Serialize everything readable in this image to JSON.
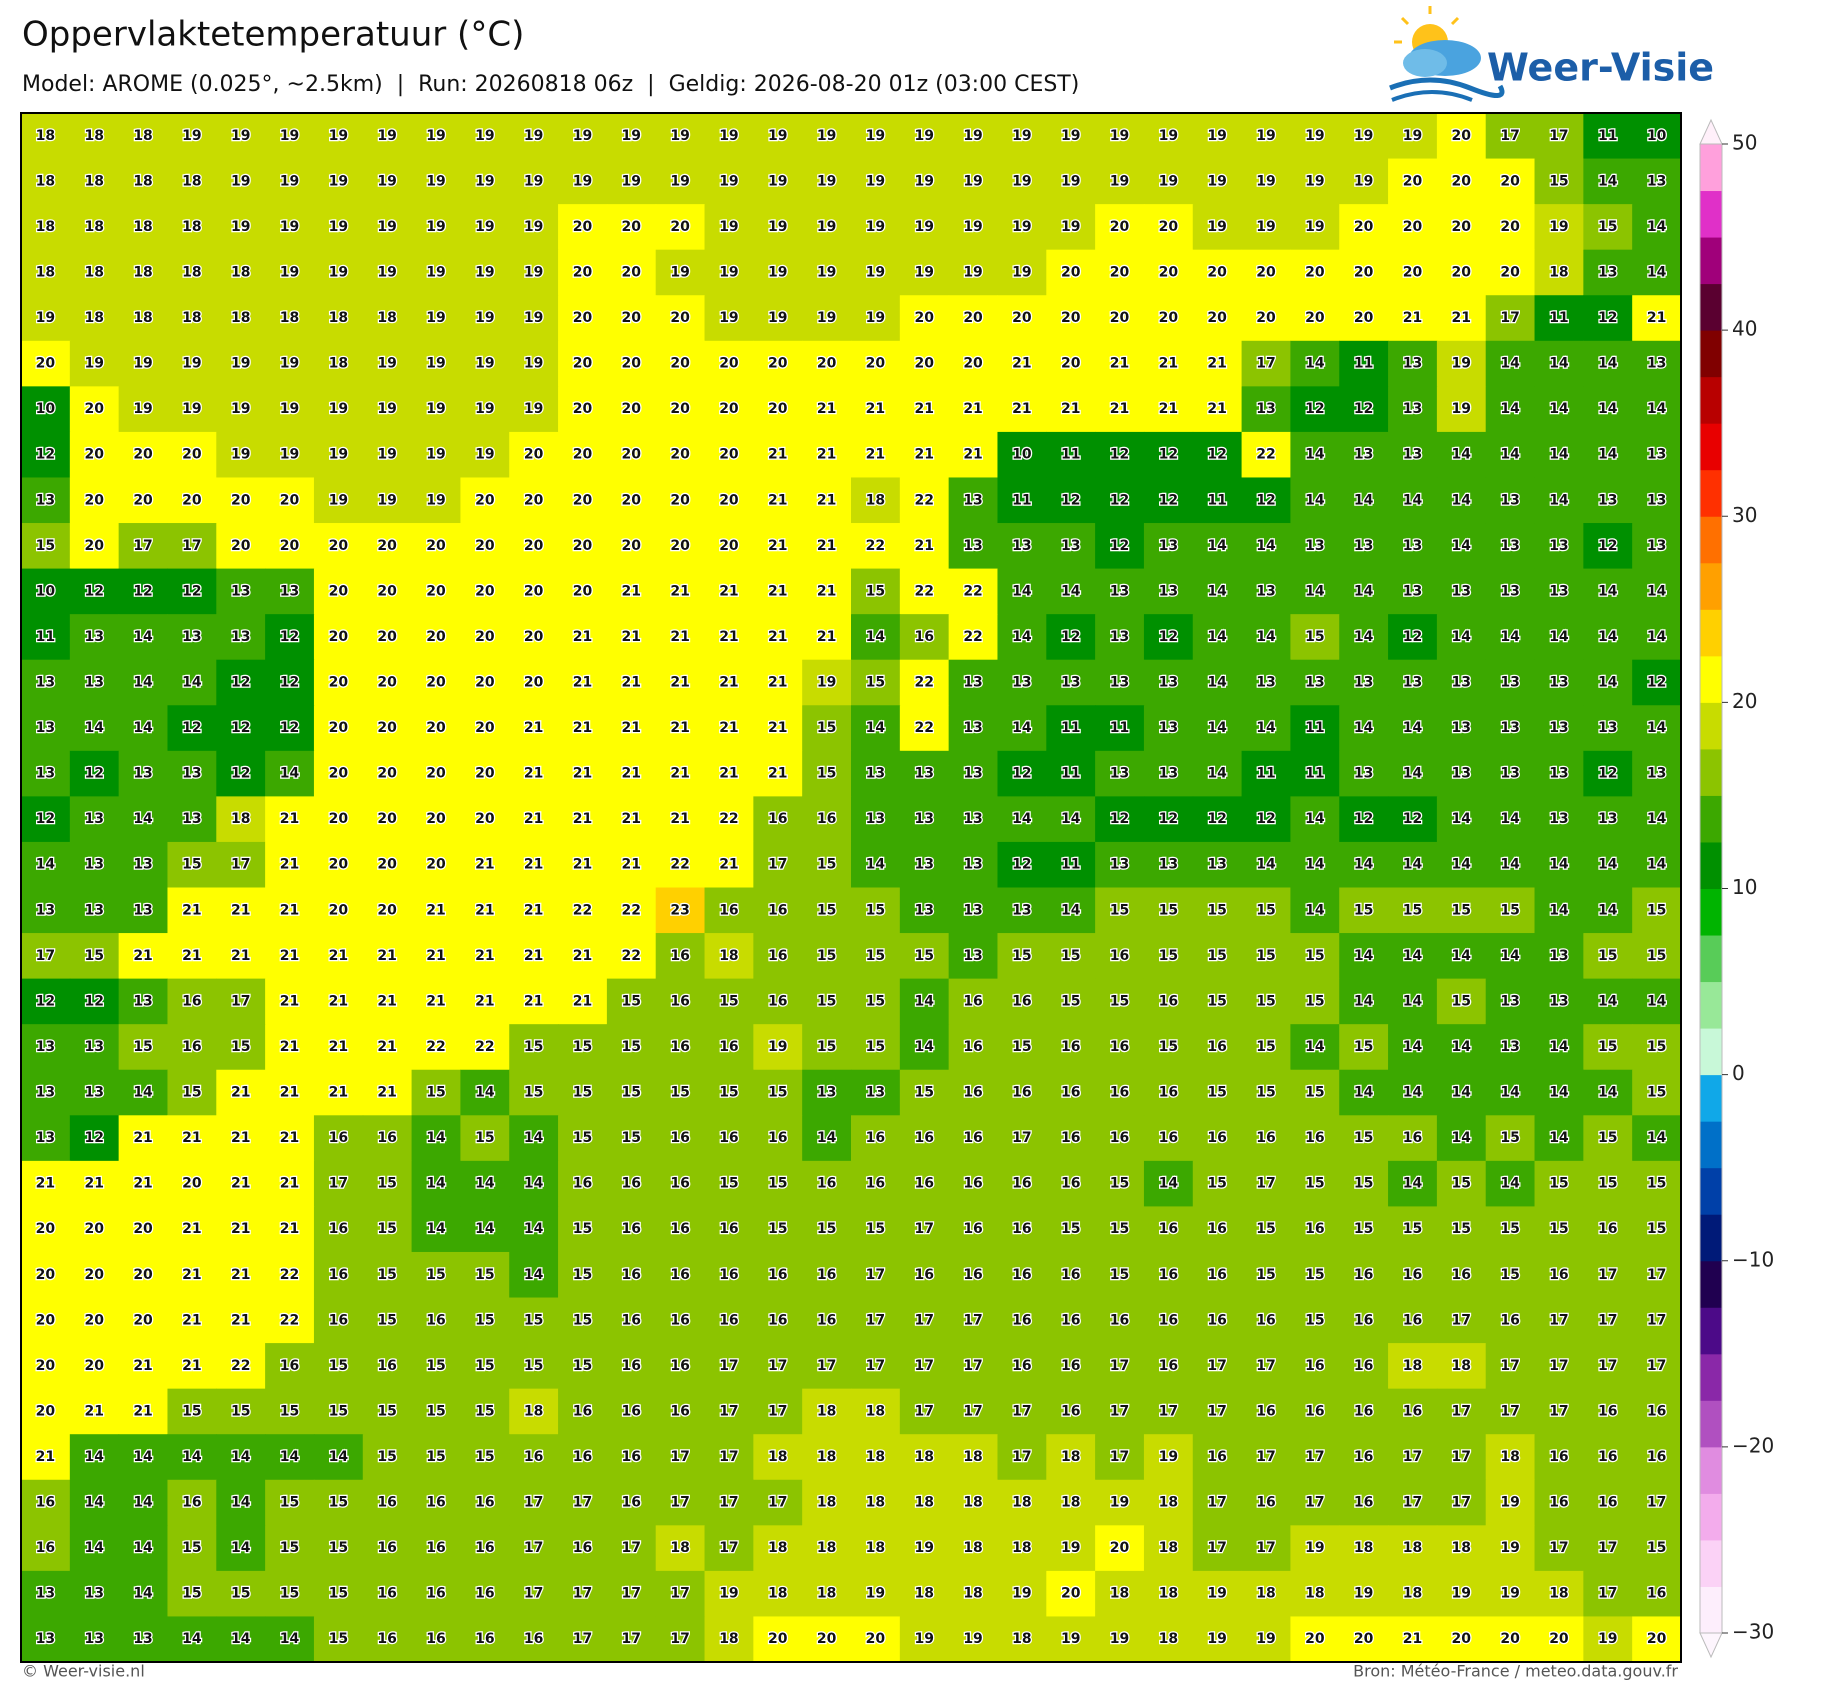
{
  "header": {
    "title": "Oppervlaktetemperatuur (°C)",
    "subtitle": "Model: AROME (0.025°, ~2.5km)  |  Run: 20260818 06z  |  Geldig: 2026-08-20 01z (03:00 CEST)",
    "logo": "Weer-Visie"
  },
  "footer": {
    "left": "© Weer-visie.nl",
    "right": "Bron: Météo-France / meteo.data.gouv.fr"
  },
  "colorbar": {
    "lim": [
      -30,
      50
    ],
    "ticks": [
      {
        "value": -30,
        "label": "−30"
      },
      {
        "value": -20,
        "label": "−20"
      },
      {
        "value": -10,
        "label": "−10"
      },
      0,
      10,
      20,
      30,
      40,
      50
    ],
    "colors": [
      "#fdeefc",
      "#fbd2f6",
      "#f3acec",
      "#e08ce0",
      "#b050c0",
      "#8a28a8",
      "#4c0a88",
      "#200050",
      "#001a78",
      "#0040a8",
      "#0070c8",
      "#10a8e8",
      "#c8f8d8",
      "#98e898",
      "#58cc58",
      "#00b400",
      "#009000",
      "#3ca800",
      "#8cc400",
      "#c8dc00",
      "#ffff00",
      "#ffd000",
      "#ffa000",
      "#ff7000",
      "#ff3000",
      "#e80000",
      "#b80000",
      "#800000",
      "#5a0030",
      "#a0007a",
      "#e030c8",
      "#ffa0dc"
    ]
  },
  "map": {
    "grid": [
      [
        18,
        18,
        18,
        19,
        19,
        19,
        19,
        19,
        19,
        19,
        19,
        19,
        19,
        19,
        19,
        19,
        19,
        19,
        19,
        19,
        19,
        19,
        19,
        19,
        19,
        19,
        19,
        19,
        19,
        20,
        17,
        17,
        11,
        10
      ],
      [
        18,
        18,
        18,
        18,
        19,
        19,
        19,
        19,
        19,
        19,
        19,
        19,
        19,
        19,
        19,
        19,
        19,
        19,
        19,
        19,
        19,
        19,
        19,
        19,
        19,
        19,
        19,
        19,
        20,
        20,
        20,
        15,
        14,
        13
      ],
      [
        18,
        18,
        18,
        18,
        19,
        19,
        19,
        19,
        19,
        19,
        19,
        20,
        20,
        20,
        19,
        19,
        19,
        19,
        19,
        19,
        19,
        19,
        20,
        20,
        19,
        19,
        19,
        20,
        20,
        20,
        20,
        19,
        15,
        14
      ],
      [
        18,
        18,
        18,
        18,
        18,
        19,
        19,
        19,
        19,
        19,
        19,
        20,
        20,
        19,
        19,
        19,
        19,
        19,
        19,
        19,
        19,
        20,
        20,
        20,
        20,
        20,
        20,
        20,
        20,
        20,
        20,
        18,
        13,
        14
      ],
      [
        19,
        18,
        18,
        18,
        18,
        18,
        18,
        18,
        19,
        19,
        19,
        20,
        20,
        20,
        19,
        19,
        19,
        19,
        20,
        20,
        20,
        20,
        20,
        20,
        20,
        20,
        20,
        20,
        21,
        21,
        17,
        11,
        12,
        21
      ],
      [
        20,
        19,
        19,
        19,
        19,
        19,
        18,
        19,
        19,
        19,
        19,
        20,
        20,
        20,
        20,
        20,
        20,
        20,
        20,
        20,
        21,
        20,
        21,
        21,
        21,
        17,
        14,
        11,
        13,
        19,
        14,
        14,
        14,
        13
      ],
      [
        10,
        20,
        19,
        19,
        19,
        19,
        19,
        19,
        19,
        19,
        19,
        20,
        20,
        20,
        20,
        20,
        21,
        21,
        21,
        21,
        21,
        21,
        21,
        21,
        21,
        13,
        12,
        12,
        13,
        19,
        14,
        14,
        14,
        14
      ],
      [
        12,
        20,
        20,
        20,
        19,
        19,
        19,
        19,
        19,
        19,
        20,
        20,
        20,
        20,
        20,
        21,
        21,
        21,
        21,
        21,
        10,
        11,
        12,
        12,
        12,
        22,
        14,
        13,
        13,
        14,
        14,
        14,
        14,
        13
      ],
      [
        13,
        20,
        20,
        20,
        20,
        20,
        19,
        19,
        19,
        20,
        20,
        20,
        20,
        20,
        20,
        21,
        21,
        18,
        22,
        13,
        11,
        12,
        12,
        12,
        11,
        12,
        14,
        14,
        14,
        14,
        13,
        14,
        13,
        13
      ],
      [
        15,
        20,
        17,
        17,
        20,
        20,
        20,
        20,
        20,
        20,
        20,
        20,
        20,
        20,
        20,
        21,
        21,
        22,
        21,
        13,
        13,
        13,
        12,
        13,
        14,
        14,
        13,
        13,
        13,
        14,
        13,
        13,
        12,
        13
      ],
      [
        10,
        12,
        12,
        12,
        13,
        13,
        20,
        20,
        20,
        20,
        20,
        20,
        21,
        21,
        21,
        21,
        21,
        15,
        22,
        22,
        14,
        14,
        13,
        13,
        14,
        13,
        14,
        14,
        13,
        13,
        13,
        13,
        14,
        14
      ],
      [
        11,
        13,
        14,
        13,
        13,
        12,
        20,
        20,
        20,
        20,
        20,
        21,
        21,
        21,
        21,
        21,
        21,
        14,
        16,
        22,
        14,
        12,
        13,
        12,
        14,
        14,
        15,
        14,
        12,
        14,
        14,
        14,
        14,
        14
      ],
      [
        13,
        13,
        14,
        14,
        12,
        12,
        20,
        20,
        20,
        20,
        20,
        21,
        21,
        21,
        21,
        21,
        19,
        15,
        22,
        13,
        13,
        13,
        13,
        13,
        14,
        13,
        13,
        13,
        13,
        13,
        13,
        13,
        14,
        12
      ],
      [
        13,
        14,
        14,
        12,
        12,
        12,
        20,
        20,
        20,
        20,
        21,
        21,
        21,
        21,
        21,
        21,
        15,
        14,
        22,
        13,
        14,
        11,
        11,
        13,
        14,
        14,
        11,
        14,
        14,
        13,
        13,
        13,
        13,
        14
      ],
      [
        13,
        12,
        13,
        13,
        12,
        14,
        20,
        20,
        20,
        20,
        21,
        21,
        21,
        21,
        21,
        21,
        15,
        13,
        13,
        13,
        12,
        11,
        13,
        13,
        14,
        11,
        11,
        13,
        14,
        13,
        13,
        13,
        12,
        13
      ],
      [
        12,
        13,
        14,
        13,
        18,
        21,
        20,
        20,
        20,
        20,
        21,
        21,
        21,
        21,
        22,
        16,
        16,
        13,
        13,
        13,
        14,
        14,
        12,
        12,
        12,
        12,
        14,
        12,
        12,
        14,
        14,
        13,
        13,
        14
      ],
      [
        14,
        13,
        13,
        15,
        17,
        21,
        20,
        20,
        20,
        21,
        21,
        21,
        21,
        22,
        21,
        17,
        15,
        14,
        13,
        13,
        12,
        11,
        13,
        13,
        13,
        14,
        14,
        14,
        14,
        14,
        14,
        14,
        14,
        14
      ],
      [
        13,
        13,
        13,
        21,
        21,
        21,
        20,
        20,
        21,
        21,
        21,
        22,
        22,
        23,
        16,
        16,
        15,
        15,
        13,
        13,
        13,
        14,
        15,
        15,
        15,
        15,
        14,
        15,
        15,
        15,
        15,
        14,
        14,
        15
      ],
      [
        17,
        15,
        21,
        21,
        21,
        21,
        21,
        21,
        21,
        21,
        21,
        21,
        22,
        16,
        18,
        16,
        15,
        15,
        15,
        13,
        15,
        15,
        16,
        15,
        15,
        15,
        15,
        14,
        14,
        14,
        14,
        13,
        15,
        15
      ],
      [
        12,
        12,
        13,
        16,
        17,
        21,
        21,
        21,
        21,
        21,
        21,
        21,
        15,
        16,
        15,
        16,
        15,
        15,
        14,
        16,
        16,
        15,
        15,
        16,
        15,
        15,
        15,
        14,
        14,
        15,
        13,
        13,
        14,
        14
      ],
      [
        13,
        13,
        15,
        16,
        15,
        21,
        21,
        21,
        22,
        22,
        15,
        15,
        15,
        16,
        16,
        19,
        15,
        15,
        14,
        16,
        15,
        16,
        16,
        15,
        16,
        15,
        14,
        15,
        14,
        14,
        13,
        14,
        15,
        15
      ],
      [
        13,
        13,
        14,
        15,
        21,
        21,
        21,
        21,
        15,
        14,
        15,
        15,
        15,
        15,
        15,
        15,
        13,
        13,
        15,
        16,
        16,
        16,
        16,
        16,
        15,
        15,
        15,
        14,
        14,
        14,
        14,
        14,
        14,
        15
      ],
      [
        13,
        12,
        21,
        21,
        21,
        21,
        16,
        16,
        14,
        15,
        14,
        15,
        15,
        16,
        16,
        16,
        14,
        16,
        16,
        16,
        17,
        16,
        16,
        16,
        16,
        16,
        16,
        15,
        16,
        14,
        15,
        14,
        15,
        14
      ],
      [
        21,
        21,
        21,
        20,
        21,
        21,
        17,
        15,
        14,
        14,
        14,
        16,
        16,
        16,
        15,
        15,
        16,
        16,
        16,
        16,
        16,
        16,
        15,
        14,
        15,
        17,
        15,
        15,
        14,
        15,
        14,
        15,
        15,
        15
      ],
      [
        20,
        20,
        20,
        21,
        21,
        21,
        16,
        15,
        14,
        14,
        14,
        15,
        16,
        16,
        16,
        15,
        15,
        15,
        17,
        16,
        16,
        15,
        15,
        16,
        16,
        15,
        16,
        15,
        15,
        15,
        15,
        15,
        16,
        15
      ],
      [
        20,
        20,
        20,
        21,
        21,
        22,
        16,
        15,
        15,
        15,
        14,
        15,
        16,
        16,
        16,
        16,
        16,
        17,
        16,
        16,
        16,
        16,
        15,
        16,
        16,
        15,
        15,
        16,
        16,
        16,
        15,
        16,
        17,
        17
      ],
      [
        20,
        20,
        20,
        21,
        21,
        22,
        16,
        15,
        16,
        15,
        15,
        15,
        16,
        16,
        16,
        16,
        16,
        17,
        17,
        17,
        16,
        16,
        16,
        16,
        16,
        16,
        15,
        16,
        16,
        17,
        16,
        17,
        17,
        17
      ],
      [
        20,
        20,
        21,
        21,
        22,
        16,
        15,
        16,
        15,
        15,
        15,
        15,
        16,
        16,
        17,
        17,
        17,
        17,
        17,
        17,
        16,
        16,
        17,
        16,
        17,
        17,
        16,
        16,
        18,
        18,
        17,
        17,
        17,
        17
      ],
      [
        20,
        21,
        21,
        15,
        15,
        15,
        15,
        15,
        15,
        15,
        18,
        16,
        16,
        16,
        17,
        17,
        18,
        18,
        17,
        17,
        17,
        16,
        17,
        17,
        17,
        16,
        16,
        16,
        16,
        17,
        17,
        17,
        16,
        16
      ],
      [
        21,
        14,
        14,
        14,
        14,
        14,
        14,
        15,
        15,
        15,
        16,
        16,
        16,
        17,
        17,
        18,
        18,
        18,
        18,
        18,
        17,
        18,
        17,
        19,
        16,
        17,
        17,
        16,
        17,
        17,
        18,
        16,
        16,
        16
      ],
      [
        16,
        14,
        14,
        16,
        14,
        15,
        15,
        16,
        16,
        16,
        17,
        17,
        16,
        17,
        17,
        17,
        18,
        18,
        18,
        18,
        18,
        18,
        19,
        18,
        17,
        16,
        17,
        16,
        17,
        17,
        19,
        16,
        16,
        17
      ],
      [
        16,
        14,
        14,
        15,
        14,
        15,
        15,
        16,
        16,
        16,
        17,
        16,
        17,
        18,
        17,
        18,
        18,
        18,
        19,
        18,
        18,
        19,
        20,
        18,
        17,
        17,
        19,
        18,
        18,
        18,
        19,
        17,
        17,
        15
      ],
      [
        13,
        13,
        14,
        15,
        15,
        15,
        15,
        16,
        16,
        16,
        17,
        17,
        17,
        17,
        19,
        18,
        18,
        19,
        18,
        18,
        19,
        20,
        18,
        18,
        19,
        18,
        18,
        19,
        18,
        19,
        19,
        18,
        17,
        16
      ],
      [
        13,
        13,
        13,
        14,
        14,
        14,
        15,
        16,
        16,
        16,
        16,
        17,
        17,
        17,
        18,
        20,
        20,
        20,
        19,
        19,
        18,
        19,
        19,
        18,
        19,
        19,
        20,
        20,
        21,
        20,
        20,
        20,
        19,
        20
      ]
    ]
  }
}
